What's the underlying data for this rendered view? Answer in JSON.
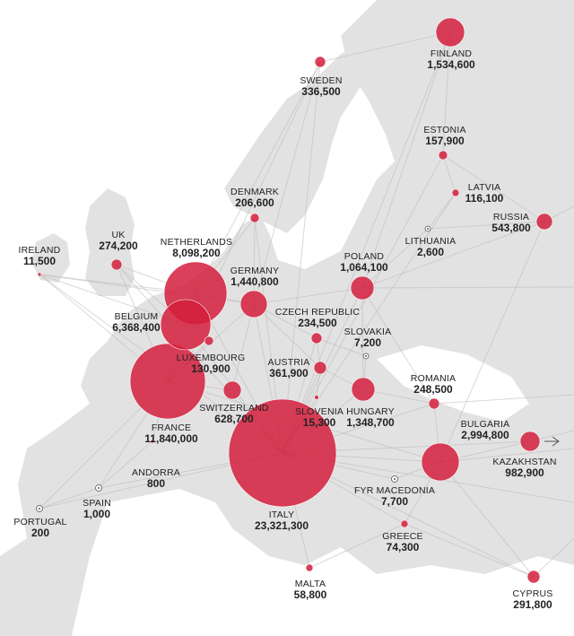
{
  "colors": {
    "sea": "#ffffff",
    "land": "#e2e2e2",
    "route_line": "#b9b9b9",
    "bubble_fill": "#d41f3c",
    "bubble_stroke": "#ffffff",
    "label_text": "#222222"
  },
  "countries": [
    {
      "name": "FINLAND",
      "value": "1,534,600"
    },
    {
      "name": "SWEDEN",
      "value": "336,500"
    },
    {
      "name": "ESTONIA",
      "value": "157,900"
    },
    {
      "name": "LATVIA",
      "value": "116,100"
    },
    {
      "name": "RUSSIA",
      "value": "543,800"
    },
    {
      "name": "LITHUANIA",
      "value": "2,600"
    },
    {
      "name": "DENMARK",
      "value": "206,600"
    },
    {
      "name": "UK",
      "value": "274,200"
    },
    {
      "name": "NETHERLANDS",
      "value": "8,098,200"
    },
    {
      "name": "IRELAND",
      "value": "11,500"
    },
    {
      "name": "GERMANY",
      "value": "1,440,800"
    },
    {
      "name": "POLAND",
      "value": "1,064,100"
    },
    {
      "name": "BELGIUM",
      "value": "6,368,400"
    },
    {
      "name": "CZECH REPUBLIC",
      "value": "234,500"
    },
    {
      "name": "SLOVAKIA",
      "value": "7,200"
    },
    {
      "name": "LUXEMBOURG",
      "value": "130,900"
    },
    {
      "name": "AUSTRIA",
      "value": "361,900"
    },
    {
      "name": "ROMANIA",
      "value": "248,500"
    },
    {
      "name": "SWITZERLAND",
      "value": "628,700"
    },
    {
      "name": "SLOVENIA",
      "value": "15,300"
    },
    {
      "name": "HUNGARY",
      "value": "1,348,700"
    },
    {
      "name": "FRANCE",
      "value": "11,840,000"
    },
    {
      "name": "BULGARIA",
      "value": "2,994,800"
    },
    {
      "name": "KAZAKHSTAN",
      "value": "982,900"
    },
    {
      "name": "ANDORRA",
      "value": "800"
    },
    {
      "name": "SPAIN",
      "value": "1,000"
    },
    {
      "name": "FYR MACEDONIA",
      "value": "7,700"
    },
    {
      "name": "PORTUGAL",
      "value": "200"
    },
    {
      "name": "ITALY",
      "value": "23,321,300"
    },
    {
      "name": "GREECE",
      "value": "74,300"
    },
    {
      "name": "MALTA",
      "value": "58,800"
    },
    {
      "name": "CYPRUS",
      "value": "291,800"
    }
  ]
}
